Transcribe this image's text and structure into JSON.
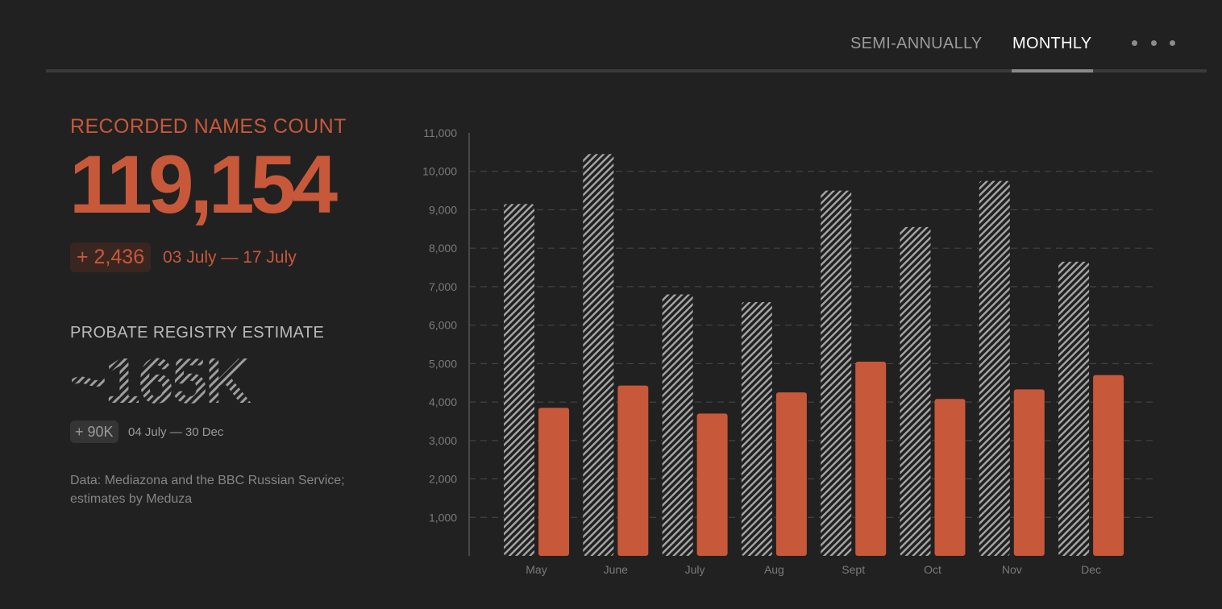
{
  "tabs": [
    {
      "label": "SEMI-ANNUALLY",
      "active": false
    },
    {
      "label": "MONTHLY",
      "active": true
    }
  ],
  "more_button_icon": "more-dots-icon",
  "recorded": {
    "label": "RECORDED NAMES COUNT",
    "value": "119,154",
    "delta": "+ 2,436",
    "period": "03 July — 17 July"
  },
  "probate": {
    "label": "PROBATE REGISTRY ESTIMATE",
    "value": "~165K",
    "delta": "+ 90K",
    "period": "04 July — 30 Dec"
  },
  "source_note": "Data: Mediazona and the BBC Russian Service; estimates by Meduza",
  "colors": {
    "accent": "#c8583a",
    "background": "#212121",
    "hatch": "#a6a6a6"
  },
  "chart_data": {
    "type": "bar",
    "categories": [
      "May",
      "June",
      "July",
      "Aug",
      "Sept",
      "Oct",
      "Nov",
      "Dec"
    ],
    "series": [
      {
        "values": [
          9150,
          10450,
          6800,
          6600,
          9500,
          8550,
          9750,
          7650
        ],
        "style": "hatched",
        "color": "#a6a6a6"
      },
      {
        "values": [
          3850,
          4430,
          3700,
          4250,
          5050,
          4080,
          4330,
          4700
        ],
        "style": "solid",
        "color": "#c8583a"
      }
    ],
    "ylim": [
      0,
      11000
    ],
    "yticks": [
      1000,
      2000,
      3000,
      4000,
      5000,
      6000,
      7000,
      8000,
      9000,
      10000,
      11000
    ],
    "ytick_labels": [
      "1,000",
      "2,000",
      "3,000",
      "4,000",
      "5,000",
      "6,000",
      "7,000",
      "8,000",
      "9,000",
      "10,000",
      "11,000"
    ],
    "title": "",
    "xlabel": "",
    "ylabel": "",
    "grid": true
  }
}
